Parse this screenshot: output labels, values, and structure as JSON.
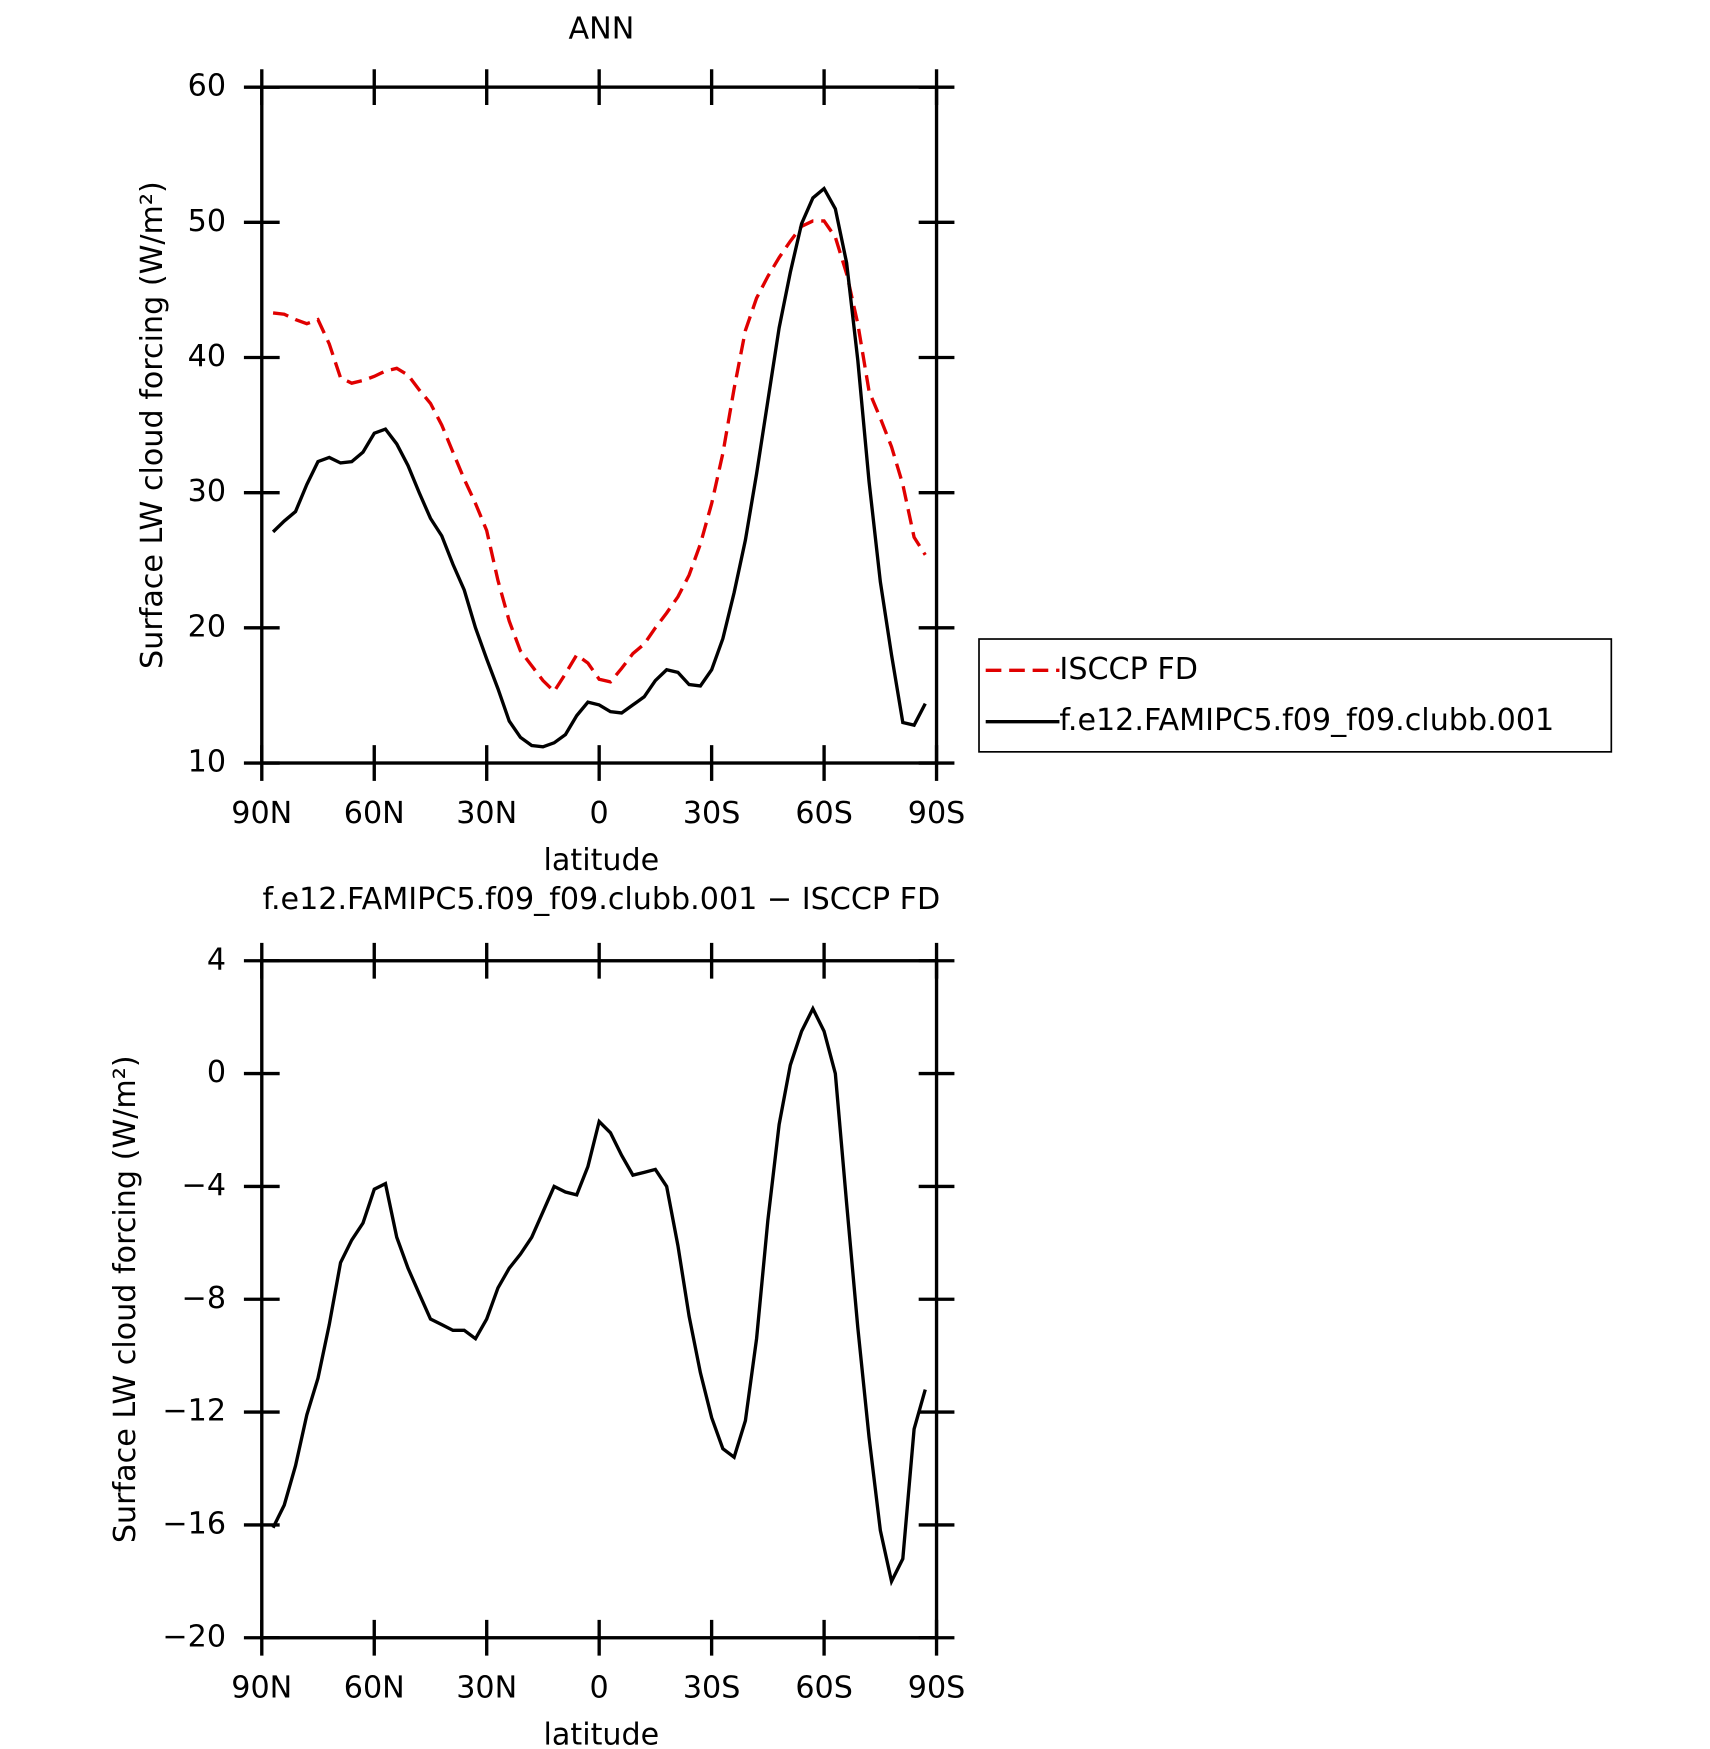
{
  "chart_data": [
    {
      "type": "line",
      "title": "ANN",
      "xlabel": "latitude",
      "ylabel": "Surface LW cloud forcing (W/m²)",
      "x": [
        87,
        84,
        81,
        78,
        75,
        72,
        69,
        66,
        63,
        60,
        57,
        54,
        51,
        48,
        45,
        42,
        39,
        36,
        33,
        30,
        27,
        24,
        21,
        18,
        15,
        12,
        9,
        6,
        3,
        0,
        -3,
        -6,
        -9,
        -12,
        -15,
        -18,
        -21,
        -24,
        -27,
        -30,
        -33,
        -36,
        -39,
        -42,
        -45,
        -48,
        -51,
        -54,
        -57,
        -60,
        -63,
        -66,
        -69,
        -72,
        -75,
        -78,
        -81,
        -84,
        -87
      ],
      "series": [
        {
          "name": "ISCCP FD",
          "color": "#e00000",
          "linestyle": "dashed",
          "values": [
            43.3,
            43.2,
            42.8,
            42.5,
            42.8,
            41.0,
            38.5,
            38.1,
            38.3,
            38.6,
            39.0,
            39.2,
            38.7,
            37.6,
            36.6,
            35.0,
            33.0,
            31.0,
            29.2,
            27.2,
            23.5,
            20.5,
            18.3,
            17.2,
            16.1,
            15.3,
            16.6,
            18.0,
            17.4,
            16.2,
            16.0,
            17.0,
            18.1,
            18.8,
            20.0,
            21.1,
            22.3,
            23.9,
            26.2,
            29.2,
            32.9,
            37.7,
            42.0,
            44.4,
            46.0,
            47.4,
            48.6,
            49.7,
            50.1,
            50.1,
            48.9,
            46.2,
            42.5,
            37.5,
            35.5,
            33.4,
            30.6,
            26.7,
            25.4
          ]
        },
        {
          "name": "f.e12.FAMIPC5.f09_f09.clubb.001",
          "color": "#000000",
          "linestyle": "solid",
          "values": [
            27.1,
            27.9,
            28.6,
            30.6,
            32.3,
            32.6,
            32.2,
            32.3,
            33.0,
            34.4,
            34.7,
            33.6,
            32.0,
            30.0,
            28.1,
            26.8,
            24.7,
            22.8,
            20.0,
            17.7,
            15.5,
            13.1,
            11.9,
            11.3,
            11.2,
            11.5,
            12.1,
            13.5,
            14.5,
            14.3,
            13.8,
            13.7,
            14.3,
            14.9,
            16.1,
            16.9,
            16.7,
            15.8,
            15.7,
            16.9,
            19.2,
            22.6,
            26.5,
            31.4,
            36.8,
            42.2,
            46.3,
            49.9,
            51.8,
            52.5,
            51.0,
            47.0,
            39.8,
            30.8,
            23.4,
            18.0,
            13.0,
            12.8,
            14.4
          ]
        }
      ],
      "xlim": [
        90,
        -90
      ],
      "xticks": [
        {
          "value": 90,
          "label": "90N"
        },
        {
          "value": 60,
          "label": "60N"
        },
        {
          "value": 30,
          "label": "30N"
        },
        0,
        {
          "value": -30,
          "label": "30S"
        },
        {
          "value": -60,
          "label": "60S"
        },
        {
          "value": -90,
          "label": "90S"
        }
      ],
      "ylim": [
        10,
        60
      ],
      "yticks": [
        10,
        20,
        30,
        40,
        50,
        60
      ],
      "legend": "right"
    },
    {
      "type": "line",
      "title": "f.e12.FAMIPC5.f09_f09.clubb.001 − ISCCP FD",
      "xlabel": "latitude",
      "ylabel": "Surface LW cloud forcing (W/m²)",
      "x": [
        87,
        84,
        81,
        78,
        75,
        72,
        69,
        66,
        63,
        60,
        57,
        54,
        51,
        48,
        45,
        42,
        39,
        36,
        33,
        30,
        27,
        24,
        21,
        18,
        15,
        12,
        9,
        6,
        3,
        0,
        -3,
        -6,
        -9,
        -12,
        -15,
        -18,
        -21,
        -24,
        -27,
        -30,
        -33,
        -36,
        -39,
        -42,
        -45,
        -48,
        -51,
        -54,
        -57,
        -60,
        -63,
        -66,
        -69,
        -72,
        -75,
        -78,
        -81,
        -84,
        -87
      ],
      "values": [
        -16.1,
        -15.3,
        -13.9,
        -12.1,
        -10.8,
        -8.9,
        -6.7,
        -5.9,
        -5.3,
        -4.1,
        -3.9,
        -5.8,
        -6.9,
        -7.8,
        -8.7,
        -8.9,
        -9.1,
        -9.1,
        -9.4,
        -8.7,
        -7.6,
        -6.9,
        -6.4,
        -5.8,
        -4.9,
        -4.0,
        -4.2,
        -4.3,
        -3.3,
        -1.7,
        -2.1,
        -2.9,
        -3.6,
        -3.5,
        -3.4,
        -4.0,
        -6.1,
        -8.6,
        -10.6,
        -12.2,
        -13.3,
        -13.6,
        -12.3,
        -9.4,
        -5.2,
        -1.8,
        0.3,
        1.5,
        2.3,
        1.5,
        0.0,
        -4.6,
        -9.0,
        -12.9,
        -16.2,
        -18.0,
        -17.2,
        -12.6,
        -11.2
      ],
      "color": "#000000",
      "xlim": [
        90,
        -90
      ],
      "xticks": [
        {
          "value": 90,
          "label": "90N"
        },
        {
          "value": 60,
          "label": "60N"
        },
        {
          "value": 30,
          "label": "30N"
        },
        0,
        {
          "value": -30,
          "label": "30S"
        },
        {
          "value": -60,
          "label": "60S"
        },
        {
          "value": -90,
          "label": "90S"
        }
      ],
      "ylim": [
        -20,
        4
      ],
      "yticks": [
        {
          "value": -20,
          "label": "−20"
        },
        {
          "value": -16,
          "label": "−16"
        },
        {
          "value": -12,
          "label": "−12"
        },
        {
          "value": -8,
          "label": "−8"
        },
        {
          "value": -4,
          "label": "−4"
        },
        0,
        4
      ]
    }
  ]
}
